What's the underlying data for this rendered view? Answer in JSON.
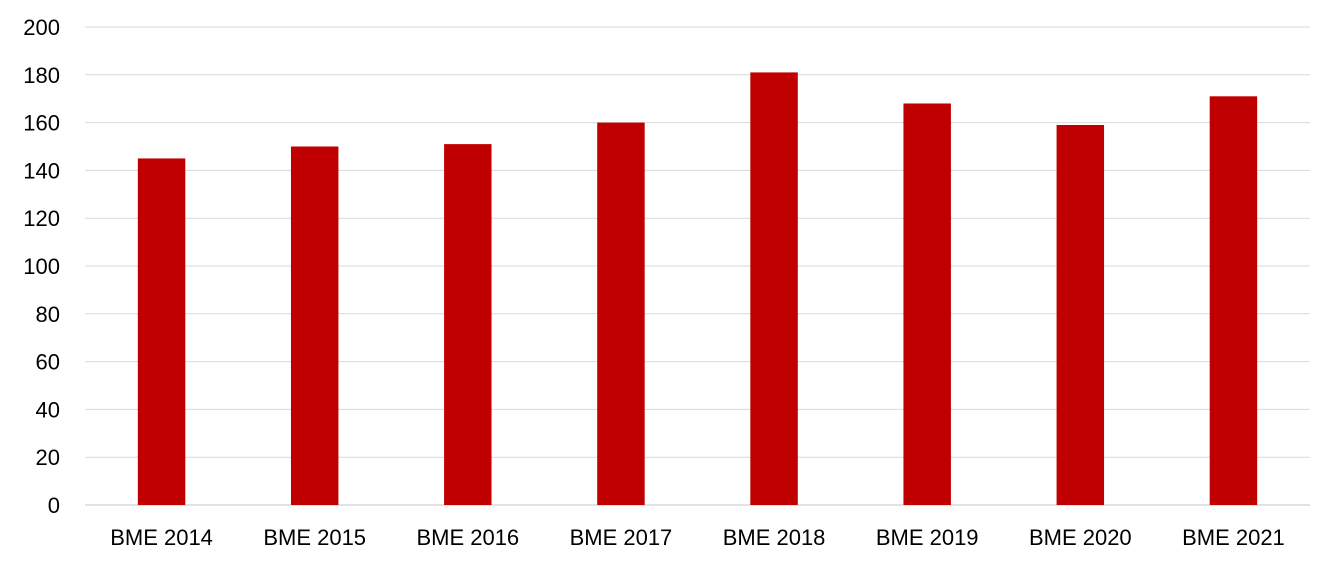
{
  "chart_data": {
    "type": "bar",
    "title": "",
    "xlabel": "",
    "ylabel": "",
    "categories": [
      "BME 2014",
      "BME 2015",
      "BME 2016",
      "BME 2017",
      "BME 2018",
      "BME 2019",
      "BME 2020",
      "BME 2021"
    ],
    "values": [
      145,
      150,
      151,
      160,
      181,
      168,
      159,
      171
    ],
    "ylim": [
      0,
      200
    ],
    "yticks": [
      0,
      20,
      40,
      60,
      80,
      100,
      120,
      140,
      160,
      180,
      200
    ],
    "grid": true,
    "legend": "none",
    "bar_color": "#c00000"
  }
}
